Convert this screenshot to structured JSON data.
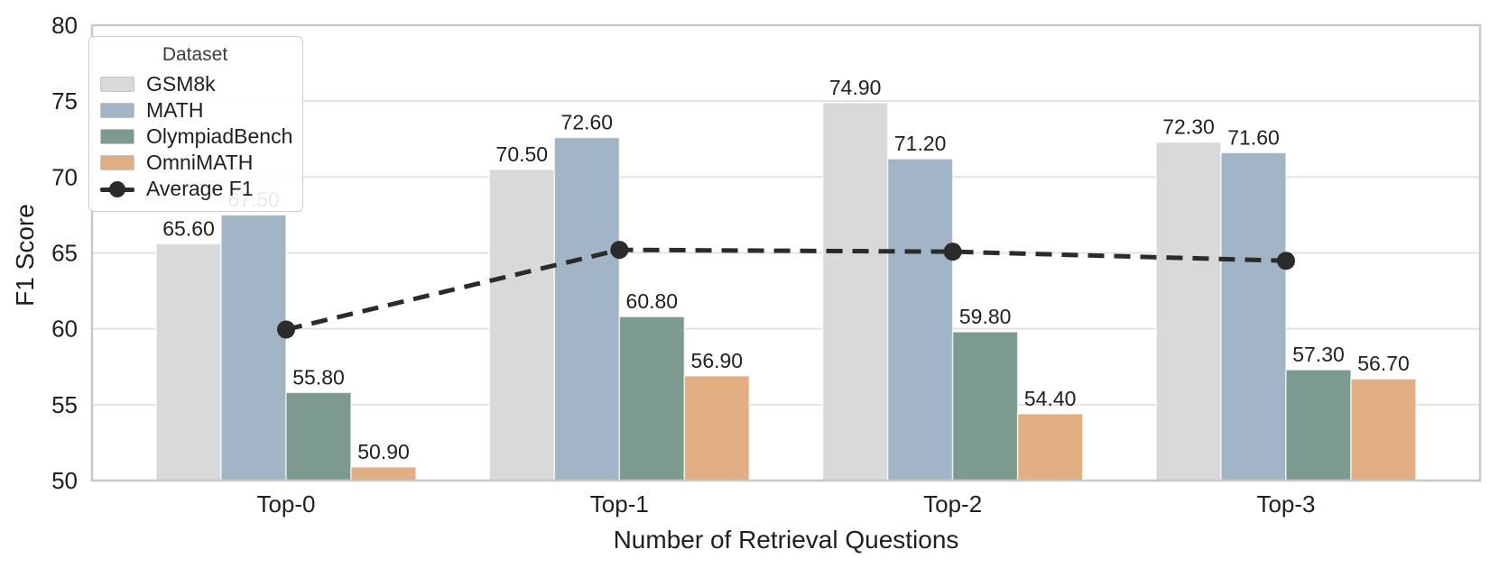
{
  "chart_data": {
    "type": "bar",
    "title": "",
    "xlabel": "Number of Retrieval Questions",
    "ylabel": "F1 Score",
    "categories": [
      "Top-0",
      "Top-1",
      "Top-2",
      "Top-3"
    ],
    "series": [
      {
        "name": "GSM8k",
        "color": "#d9d9d9",
        "values": [
          65.6,
          70.5,
          74.9,
          72.3
        ]
      },
      {
        "name": "MATH",
        "color": "#a2b5c7",
        "values": [
          67.5,
          72.6,
          71.2,
          71.6
        ]
      },
      {
        "name": "OlympiadBench",
        "color": "#7c9a90",
        "values": [
          55.8,
          60.8,
          59.8,
          57.3
        ]
      },
      {
        "name": "OmniMATH",
        "color": "#e2ae84",
        "values": [
          50.9,
          56.9,
          54.4,
          56.7
        ]
      }
    ],
    "line_series": {
      "name": "Average F1",
      "color": "#2b2b2b",
      "style": "dashed",
      "marker": "circle",
      "values": [
        59.95,
        65.2,
        65.08,
        64.48
      ]
    },
    "value_labels_decimals": 2,
    "ylim": [
      50,
      80
    ],
    "yticks": [
      50,
      55,
      60,
      65,
      70,
      75,
      80
    ],
    "grid": "horizontal",
    "legend": {
      "title": "Dataset",
      "position": "upper-left"
    },
    "colors": {
      "grid": "#e2e2e2",
      "spine": "#c8c8c8",
      "text": "#1f1f1f",
      "bar_edge": "rgba(255,255,255,0.65)"
    }
  }
}
